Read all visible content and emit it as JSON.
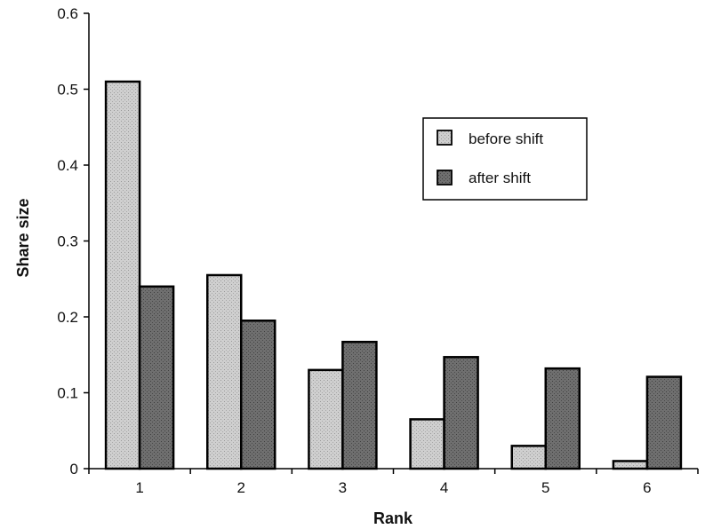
{
  "chart_data": {
    "type": "bar",
    "title": "",
    "xlabel": "Rank",
    "ylabel": "Share size",
    "categories": [
      "1",
      "2",
      "3",
      "4",
      "5",
      "6"
    ],
    "series": [
      {
        "name": "before shift",
        "values": [
          0.51,
          0.255,
          0.13,
          0.065,
          0.03,
          0.01
        ],
        "color": "#c8c8c8"
      },
      {
        "name": "after shift",
        "values": [
          0.24,
          0.195,
          0.167,
          0.147,
          0.132,
          0.121
        ],
        "color": "#6e6e6e"
      }
    ],
    "ylim": [
      0,
      0.6
    ],
    "yticks": [
      "0",
      "0.1",
      "0.2",
      "0.3",
      "0.4",
      "0.5",
      "0.6"
    ],
    "grid": false,
    "legend": "upper-right"
  }
}
